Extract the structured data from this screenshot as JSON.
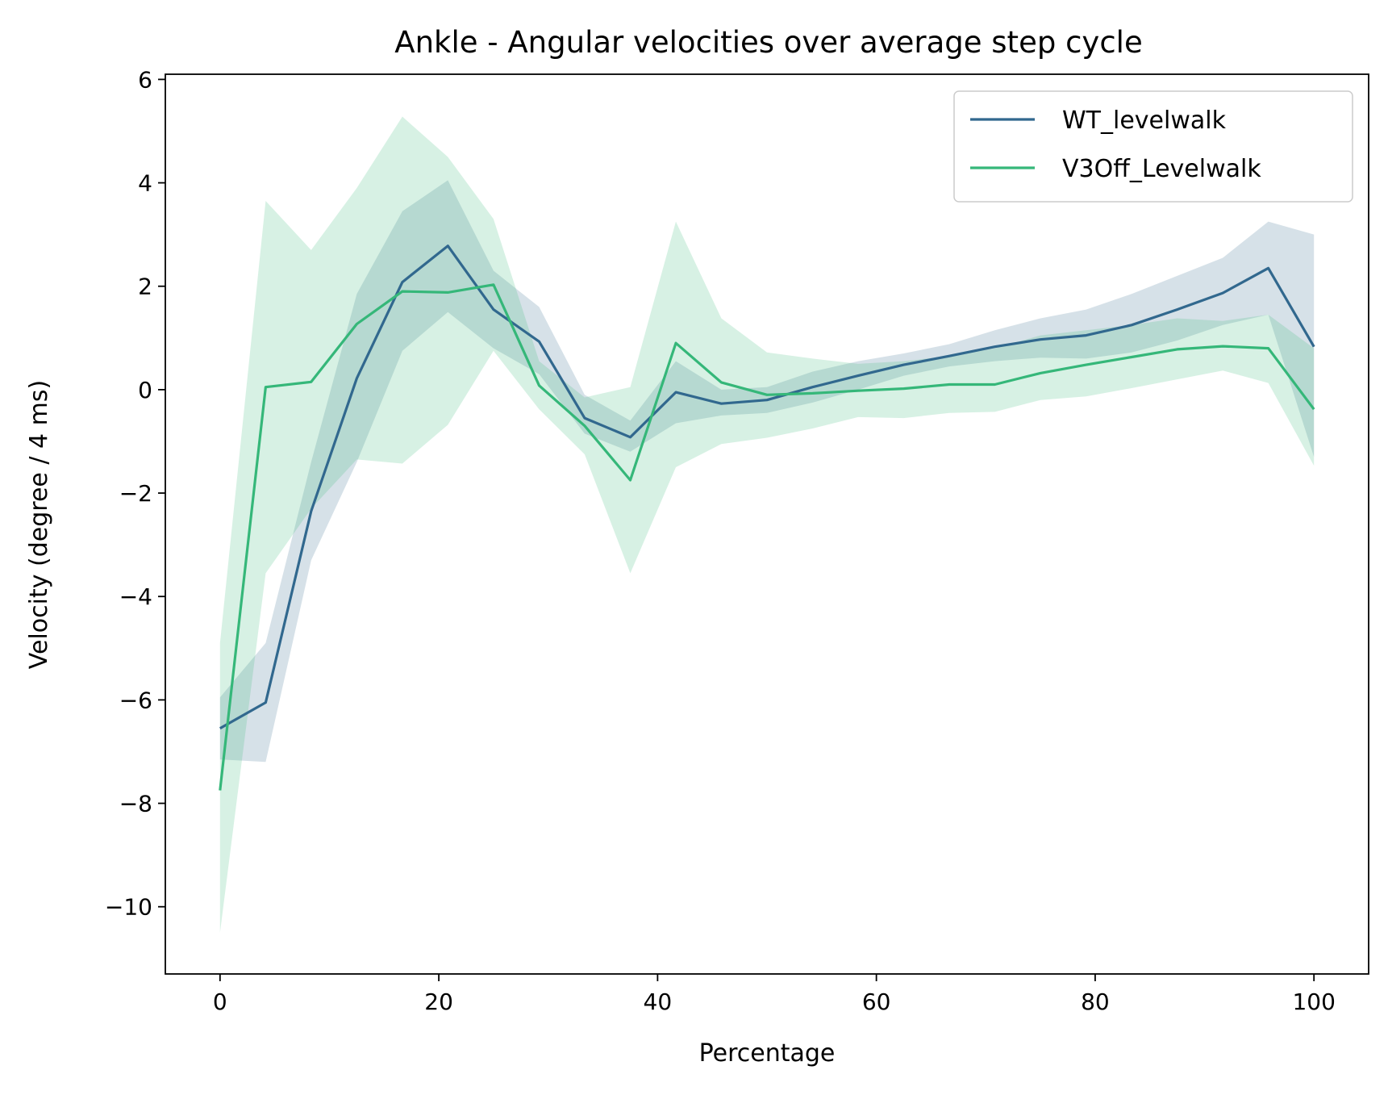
{
  "chart_data": {
    "type": "line",
    "title": "Ankle - Angular velocities over average step cycle",
    "xlabel": "Percentage",
    "ylabel": "Velocity (degree / 4 ms)",
    "xlim": [
      -5,
      105
    ],
    "ylim": [
      -11.3,
      6.1
    ],
    "xticks": [
      0,
      20,
      40,
      60,
      80,
      100
    ],
    "xtick_labels": [
      "0",
      "20",
      "40",
      "60",
      "80",
      "100"
    ],
    "yticks": [
      6,
      4,
      2,
      0,
      -2,
      -4,
      -6,
      -8,
      -10
    ],
    "ytick_labels": [
      "6",
      "4",
      "2",
      "0",
      "−2",
      "−4",
      "−6",
      "−8",
      "−10"
    ],
    "grid": false,
    "legend_position": "upper right",
    "x": [
      0,
      4.17,
      8.33,
      12.5,
      16.67,
      20.83,
      25,
      29.17,
      33.33,
      37.5,
      41.67,
      45.83,
      50,
      54.17,
      58.33,
      62.5,
      66.67,
      70.83,
      75,
      79.17,
      83.33,
      87.5,
      91.67,
      95.83,
      100
    ],
    "series": [
      {
        "name": "WT_levelwalk",
        "color": "#31688e",
        "values": [
          -6.55,
          -6.05,
          -2.35,
          0.22,
          2.08,
          2.78,
          1.55,
          0.93,
          -0.55,
          -0.92,
          -0.05,
          -0.27,
          -0.2,
          0.05,
          0.27,
          0.48,
          0.65,
          0.83,
          0.97,
          1.05,
          1.25,
          1.55,
          1.87,
          2.35,
          0.83
        ],
        "upper": [
          -5.95,
          -4.9,
          -1.4,
          1.85,
          3.45,
          4.05,
          2.3,
          1.6,
          -0.1,
          -0.6,
          0.55,
          0.0,
          0.05,
          0.35,
          0.55,
          0.7,
          0.88,
          1.15,
          1.38,
          1.55,
          1.85,
          2.2,
          2.55,
          3.25,
          3.0
        ],
        "lower": [
          -7.15,
          -7.2,
          -3.3,
          -1.4,
          0.75,
          1.5,
          0.8,
          0.3,
          -0.85,
          -1.2,
          -0.65,
          -0.5,
          -0.45,
          -0.25,
          0.0,
          0.27,
          0.45,
          0.55,
          0.62,
          0.6,
          0.72,
          0.95,
          1.25,
          1.45,
          -1.3
        ]
      },
      {
        "name": "V3Off_Levelwalk",
        "color": "#35b779",
        "values": [
          -7.75,
          0.05,
          0.15,
          1.27,
          1.9,
          1.88,
          2.03,
          0.08,
          -0.7,
          -1.75,
          0.9,
          0.14,
          -0.1,
          -0.07,
          -0.02,
          0.02,
          0.1,
          0.1,
          0.32,
          0.48,
          0.63,
          0.78,
          0.84,
          0.8,
          -0.38
        ],
        "upper": [
          -4.9,
          3.65,
          2.7,
          3.9,
          5.28,
          4.5,
          3.3,
          0.55,
          -0.15,
          0.05,
          3.25,
          1.38,
          0.72,
          0.6,
          0.5,
          0.55,
          0.65,
          0.8,
          1.05,
          1.15,
          1.25,
          1.38,
          1.33,
          1.45,
          0.8
        ],
        "lower": [
          -10.5,
          -3.55,
          -2.3,
          -1.35,
          -1.43,
          -0.68,
          0.75,
          -0.38,
          -1.25,
          -3.55,
          -1.5,
          -1.05,
          -0.93,
          -0.75,
          -0.53,
          -0.55,
          -0.45,
          -0.43,
          -0.2,
          -0.13,
          0.03,
          0.2,
          0.37,
          0.13,
          -1.47
        ]
      }
    ]
  }
}
